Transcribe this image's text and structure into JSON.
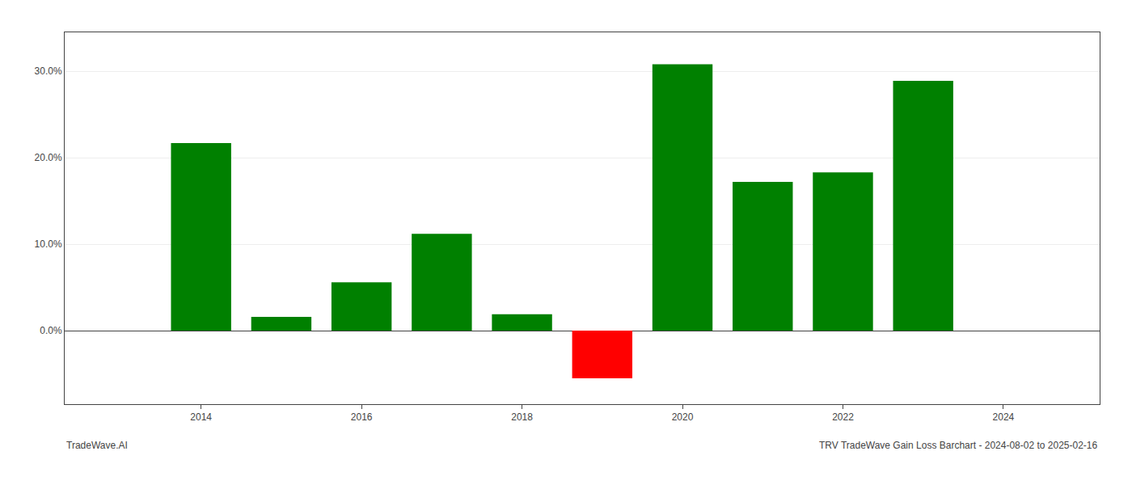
{
  "chart_data": {
    "type": "bar",
    "x": [
      2014,
      2015,
      2016,
      2017,
      2018,
      2019,
      2020,
      2021,
      2022,
      2023
    ],
    "values": [
      0.217,
      0.016,
      0.056,
      0.112,
      0.019,
      -0.055,
      0.308,
      0.172,
      0.183,
      0.289
    ],
    "colors": [
      "#008000",
      "#008000",
      "#008000",
      "#008000",
      "#008000",
      "#ff0000",
      "#008000",
      "#008000",
      "#008000",
      "#008000"
    ],
    "xlim": [
      2012.3,
      2025.2
    ],
    "xticks": [
      2014,
      2016,
      2018,
      2020,
      2022,
      2024
    ],
    "ylim": [
      -0.085,
      0.345
    ],
    "yticks": [
      {
        "value": 0.0,
        "label": "0.0%"
      },
      {
        "value": 0.1,
        "label": "10.0%"
      },
      {
        "value": 0.2,
        "label": "20.0%"
      },
      {
        "value": 0.3,
        "label": "30.0%"
      }
    ],
    "grid": true,
    "annotations": [
      "TradeWave.AI",
      "TRV TradeWave Gain Loss Barchart - 2024-08-02 to 2025-02-16"
    ]
  }
}
